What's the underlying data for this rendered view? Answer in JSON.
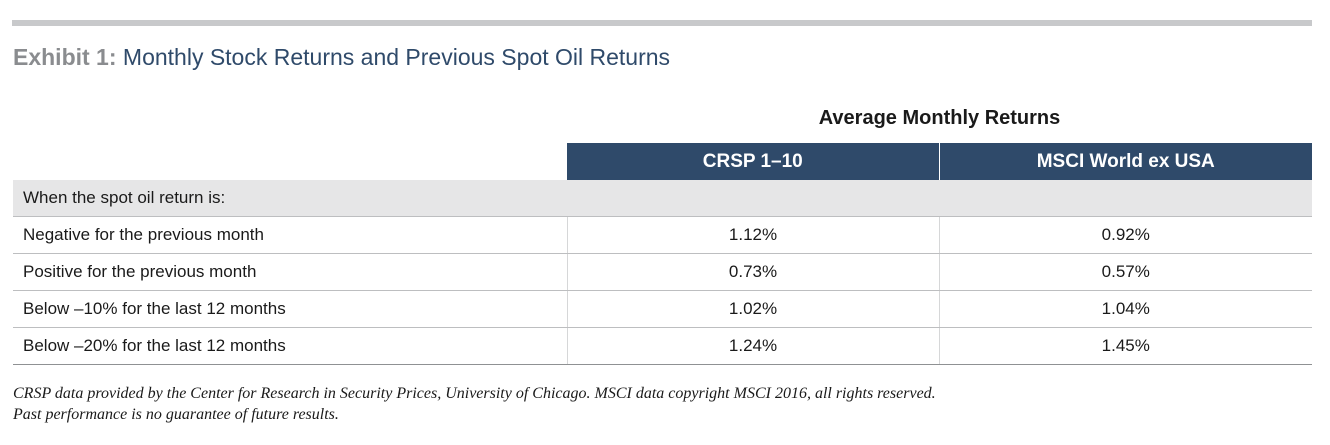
{
  "exhibit": {
    "label": "Exhibit 1:",
    "title": "Monthly Stock Returns and Previous Spot Oil Returns"
  },
  "table": {
    "group_header": "Average Monthly Returns",
    "columns": [
      "CRSP 1–10",
      "MSCI World ex USA"
    ],
    "section_label": "When the spot oil return is:",
    "rows": [
      {
        "label": "Negative for the previous month",
        "values": [
          "1.12%",
          "0.92%"
        ]
      },
      {
        "label": "Positive for the previous month",
        "values": [
          "0.73%",
          "0.57%"
        ]
      },
      {
        "label": "Below –10% for the last 12 months",
        "values": [
          "1.02%",
          "1.04%"
        ]
      },
      {
        "label": "Below –20% for the last 12 months",
        "values": [
          "1.24%",
          "1.45%"
        ]
      }
    ]
  },
  "footnote": {
    "line1": "CRSP data provided by the Center for Research in Security Prices, University of Chicago. MSCI data copyright MSCI 2016, all rights reserved.",
    "line2": "Past performance is no guarantee of future results."
  },
  "colors": {
    "header_fill": "#2f4a6a",
    "section_fill": "#e6e6e7",
    "title_lead": "#8a8c8f",
    "title_text": "#2f4a6a"
  }
}
